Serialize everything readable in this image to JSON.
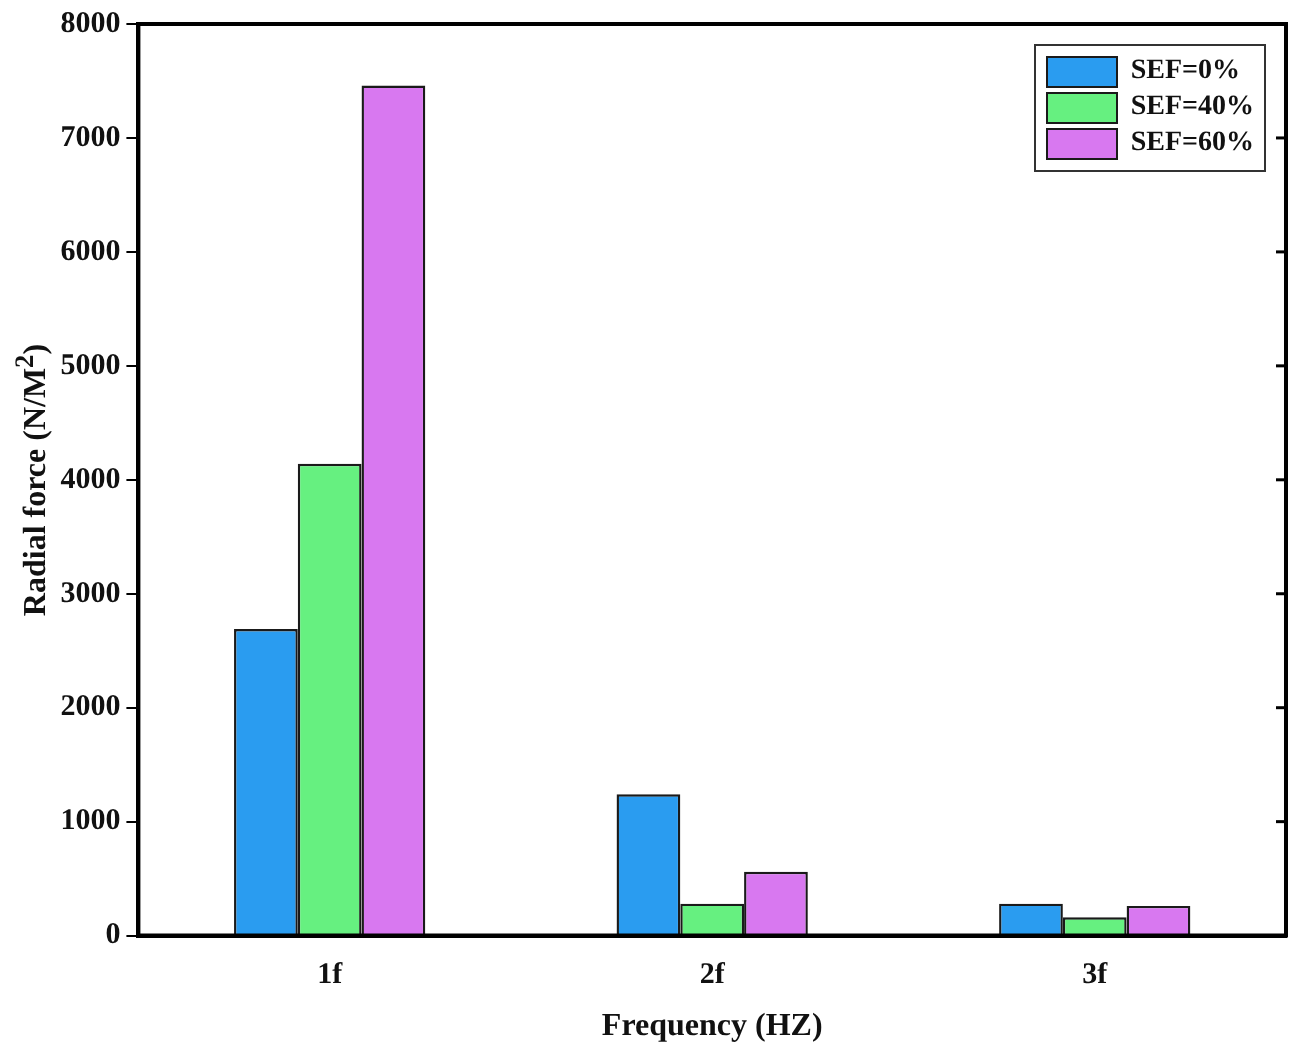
{
  "chart_data": {
    "type": "bar",
    "xlabel": "Frequency (HZ)",
    "ylabel": "Radial force (N/M$^{2}$)",
    "categories": [
      "1f",
      "2f",
      "3f"
    ],
    "series": [
      {
        "name": "SEF=0%",
        "color": "#2a9cf0",
        "values": [
          2690,
          1240,
          280
        ]
      },
      {
        "name": "SEF=40%",
        "color": "#66f080",
        "values": [
          4140,
          280,
          160
        ]
      },
      {
        "name": "SEF=60%",
        "color": "#d878f0",
        "values": [
          7460,
          560,
          260
        ]
      }
    ],
    "ylim": [
      0,
      8000
    ],
    "yticks": [
      0,
      1000,
      2000,
      3000,
      4000,
      5000,
      6000,
      7000,
      8000
    ],
    "grid": false,
    "legend": "top right"
  }
}
